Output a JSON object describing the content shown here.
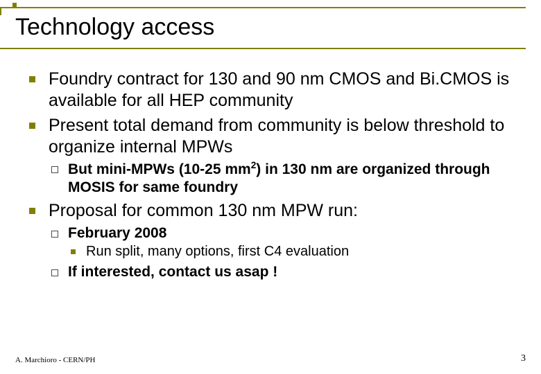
{
  "title": "Technology access",
  "b1": "Foundry contract for 130 and 90 nm CMOS and Bi.CMOS is available for all HEP community",
  "b2": "Present total demand from community is below threshold to organize internal MPWs",
  "b2a_pre": "But mini-MPWs (10-25 mm",
  "b2a_sup": "2",
  "b2a_post": ") in 130 nm are organized through MOSIS for same foundry",
  "b3": "Proposal for common 130 nm MPW run:",
  "b3a": "February 2008",
  "b3a1": "Run split, many options, first C4 evaluation",
  "b3b": "If interested, contact us asap !",
  "footer": "A. Marchioro - CERN/PH",
  "page": "3"
}
